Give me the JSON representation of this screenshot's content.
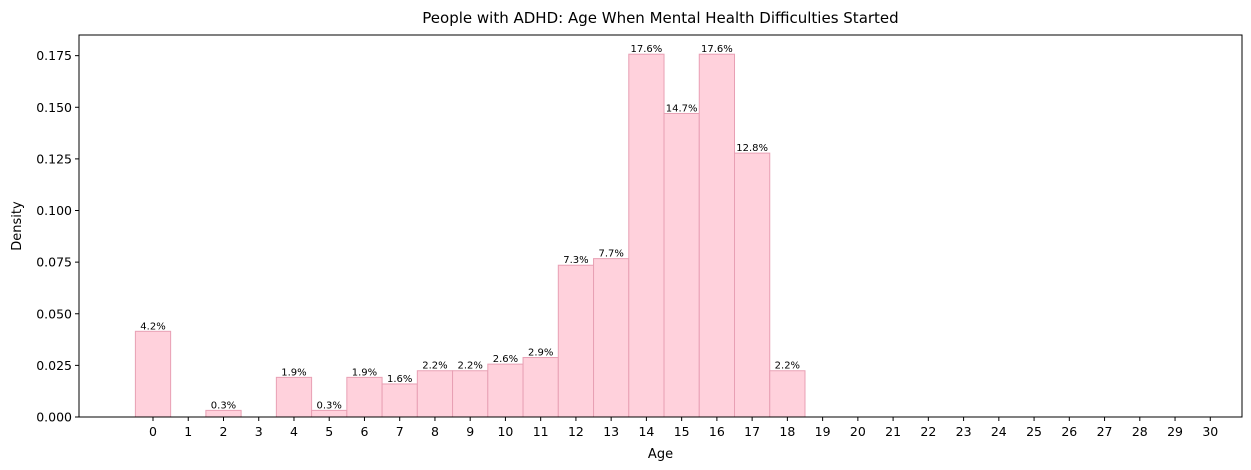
{
  "chart_data": {
    "type": "bar",
    "title": "People with ADHD: Age When Mental Health Difficulties Started",
    "xlabel": "Age",
    "ylabel": "Density",
    "xlim": [
      -0.5,
      30.5
    ],
    "ylim": [
      0,
      0.185
    ],
    "x_ticks": [
      0,
      1,
      2,
      3,
      4,
      5,
      6,
      7,
      8,
      9,
      10,
      11,
      12,
      13,
      14,
      15,
      16,
      17,
      18,
      19,
      20,
      21,
      22,
      23,
      24,
      25,
      26,
      27,
      28,
      29,
      30
    ],
    "y_ticks": [
      "0.000",
      "0.025",
      "0.050",
      "0.075",
      "0.100",
      "0.125",
      "0.150",
      "0.175"
    ],
    "y_tick_values": [
      0,
      0.025,
      0.05,
      0.075,
      0.1,
      0.125,
      0.15,
      0.175
    ],
    "grid": false,
    "bar_fill": "#ffd1dc",
    "bar_edge": "#e8a0b4",
    "bars": [
      {
        "x": 0,
        "value": 0.0415,
        "label": "4.2%"
      },
      {
        "x": 2,
        "value": 0.0032,
        "label": "0.3%"
      },
      {
        "x": 4,
        "value": 0.0192,
        "label": "1.9%"
      },
      {
        "x": 5,
        "value": 0.0032,
        "label": "0.3%"
      },
      {
        "x": 6,
        "value": 0.0192,
        "label": "1.9%"
      },
      {
        "x": 7,
        "value": 0.016,
        "label": "1.6%"
      },
      {
        "x": 8,
        "value": 0.0224,
        "label": "2.2%"
      },
      {
        "x": 9,
        "value": 0.0224,
        "label": "2.2%"
      },
      {
        "x": 10,
        "value": 0.0256,
        "label": "2.6%"
      },
      {
        "x": 11,
        "value": 0.0288,
        "label": "2.9%"
      },
      {
        "x": 12,
        "value": 0.0735,
        "label": "7.3%"
      },
      {
        "x": 13,
        "value": 0.0767,
        "label": "7.7%"
      },
      {
        "x": 14,
        "value": 0.1757,
        "label": "17.6%"
      },
      {
        "x": 15,
        "value": 0.147,
        "label": "14.7%"
      },
      {
        "x": 16,
        "value": 0.1757,
        "label": "17.6%"
      },
      {
        "x": 17,
        "value": 0.1278,
        "label": "12.8%"
      },
      {
        "x": 18,
        "value": 0.0224,
        "label": "2.2%"
      }
    ]
  }
}
